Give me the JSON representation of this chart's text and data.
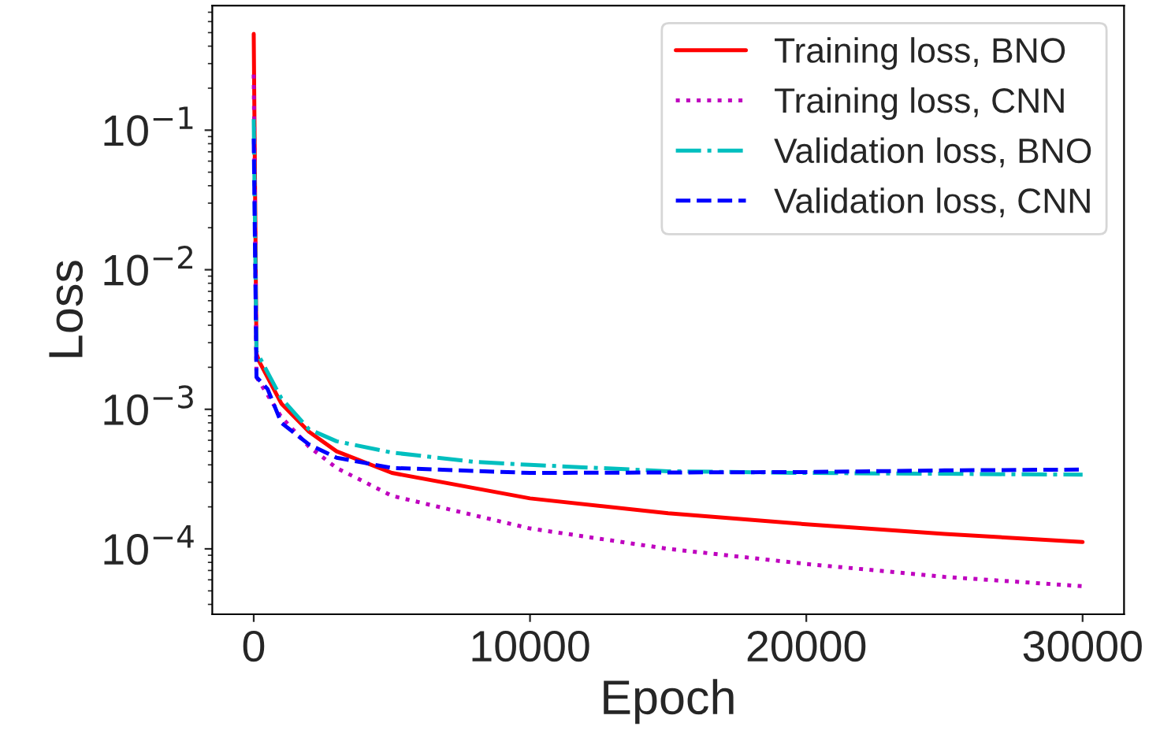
{
  "chart_data": {
    "type": "line",
    "xlabel": "Epoch",
    "ylabel": "Loss",
    "log": "y",
    "xlim": [
      -1500,
      31500
    ],
    "xticks": [
      0,
      10000,
      20000,
      30000
    ],
    "ylim": [
      3.4e-05,
      0.78
    ],
    "yticks": [
      {
        "value": 0.0001,
        "label": "10$^{−4}$"
      },
      {
        "value": 0.001,
        "label": "10$^{−3}$"
      },
      {
        "value": 0.01,
        "label": "10$^{−2}$"
      },
      {
        "value": 0.1,
        "label": "10$^{−1}$"
      }
    ],
    "legend": "top right",
    "grid": false,
    "series": [
      {
        "name": "Training loss, BNO",
        "color": "#ff0000",
        "line_style": "solid",
        "x": [
          0,
          100,
          200,
          1000,
          2000,
          3000,
          5000,
          10000,
          15000,
          20000,
          25000,
          30000
        ],
        "values": [
          0.49,
          0.0025,
          0.0022,
          0.0011,
          0.00069,
          0.0005,
          0.00035,
          0.00023,
          0.00018,
          0.00015,
          0.000128,
          0.000112
        ]
      },
      {
        "name": "Training loss, CNN",
        "color": "#bf00bf",
        "line_style": "dotted",
        "x": [
          0,
          100,
          1000,
          2000,
          3000,
          5000,
          10000,
          15000,
          20000,
          25000,
          30000
        ],
        "values": [
          0.25,
          0.0017,
          0.00088,
          0.00054,
          0.00038,
          0.00024,
          0.00014,
          0.0001,
          7.8e-05,
          6.3e-05,
          5.4e-05
        ]
      },
      {
        "name": "Validation loss, BNO",
        "color": "#00bfbf",
        "line_style": "dashdot",
        "x": [
          0,
          100,
          1000,
          2000,
          3000,
          5000,
          8000,
          10000,
          15000,
          20000,
          30000
        ],
        "values": [
          0.12,
          0.0026,
          0.0012,
          0.00072,
          0.00059,
          0.00049,
          0.00042,
          0.0004,
          0.00036,
          0.00035,
          0.00034
        ]
      },
      {
        "name": "Validation loss, CNN",
        "color": "#0000ff",
        "line_style": "dashed",
        "x": [
          0,
          100,
          500,
          1000,
          2000,
          3000,
          5000,
          10000,
          20000,
          25000,
          30000
        ],
        "values": [
          0.087,
          0.0017,
          0.0014,
          0.0008,
          0.00056,
          0.00045,
          0.00038,
          0.00035,
          0.000355,
          0.000365,
          0.00037
        ]
      }
    ]
  }
}
